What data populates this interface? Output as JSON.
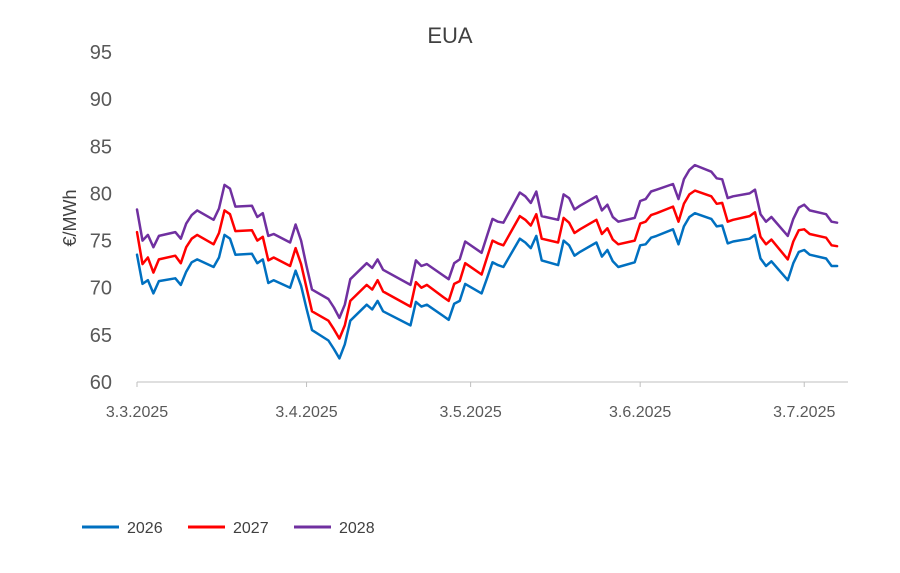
{
  "chart_data": {
    "type": "line",
    "title": "EUA",
    "ylabel": "€/MWh",
    "xlabel": "",
    "ylim": [
      60,
      95
    ],
    "yticks": [
      "60",
      "65",
      "70",
      "75",
      "80",
      "85",
      "90",
      "95"
    ],
    "xlim": [
      "2025-03-03",
      "2025-07-11"
    ],
    "xticks": [
      {
        "date": "2025-03-03",
        "label": "3.3.2025"
      },
      {
        "date": "2025-04-03",
        "label": "3.4.2025"
      },
      {
        "date": "2025-05-03",
        "label": "3.5.2025"
      },
      {
        "date": "2025-06-03",
        "label": "3.6.2025"
      },
      {
        "date": "2025-07-03",
        "label": "3.7.2025"
      }
    ],
    "grid": false,
    "legend_position": "bottom",
    "series": [
      {
        "name": "2026",
        "color": "#0070C0",
        "points": [
          [
            "2025-03-03",
            73.5
          ],
          [
            "2025-03-04",
            70.4
          ],
          [
            "2025-03-05",
            70.8
          ],
          [
            "2025-03-06",
            69.4
          ],
          [
            "2025-03-07",
            70.7
          ],
          [
            "2025-03-10",
            71.0
          ],
          [
            "2025-03-11",
            70.3
          ],
          [
            "2025-03-12",
            71.7
          ],
          [
            "2025-03-13",
            72.7
          ],
          [
            "2025-03-14",
            73.0
          ],
          [
            "2025-03-17",
            72.2
          ],
          [
            "2025-03-18",
            73.2
          ],
          [
            "2025-03-19",
            75.6
          ],
          [
            "2025-03-20",
            75.2
          ],
          [
            "2025-03-21",
            73.5
          ],
          [
            "2025-03-24",
            73.6
          ],
          [
            "2025-03-25",
            72.6
          ],
          [
            "2025-03-26",
            73.0
          ],
          [
            "2025-03-27",
            70.5
          ],
          [
            "2025-03-28",
            70.8
          ],
          [
            "2025-03-31",
            70.0
          ],
          [
            "2025-04-01",
            71.8
          ],
          [
            "2025-04-02",
            70.2
          ],
          [
            "2025-04-03",
            67.8
          ],
          [
            "2025-04-04",
            65.5
          ],
          [
            "2025-04-07",
            64.4
          ],
          [
            "2025-04-08",
            63.5
          ],
          [
            "2025-04-09",
            62.5
          ],
          [
            "2025-04-10",
            64.0
          ],
          [
            "2025-04-11",
            66.5
          ],
          [
            "2025-04-14",
            68.2
          ],
          [
            "2025-04-15",
            67.7
          ],
          [
            "2025-04-16",
            68.6
          ],
          [
            "2025-04-17",
            67.5
          ],
          [
            "2025-04-22",
            66.0
          ],
          [
            "2025-04-23",
            68.5
          ],
          [
            "2025-04-24",
            68.0
          ],
          [
            "2025-04-25",
            68.2
          ],
          [
            "2025-04-28",
            67.0
          ],
          [
            "2025-04-29",
            66.6
          ],
          [
            "2025-04-30",
            68.3
          ],
          [
            "2025-05-01",
            68.6
          ],
          [
            "2025-05-02",
            70.4
          ],
          [
            "2025-05-05",
            69.4
          ],
          [
            "2025-05-06",
            71.0
          ],
          [
            "2025-05-07",
            72.7
          ],
          [
            "2025-05-08",
            72.4
          ],
          [
            "2025-05-09",
            72.2
          ],
          [
            "2025-05-12",
            75.2
          ],
          [
            "2025-05-13",
            74.8
          ],
          [
            "2025-05-14",
            74.2
          ],
          [
            "2025-05-15",
            75.5
          ],
          [
            "2025-05-16",
            72.9
          ],
          [
            "2025-05-19",
            72.4
          ],
          [
            "2025-05-20",
            75.0
          ],
          [
            "2025-05-21",
            74.5
          ],
          [
            "2025-05-22",
            73.4
          ],
          [
            "2025-05-23",
            73.8
          ],
          [
            "2025-05-26",
            74.8
          ],
          [
            "2025-05-27",
            73.3
          ],
          [
            "2025-05-28",
            74.0
          ],
          [
            "2025-05-29",
            72.8
          ],
          [
            "2025-05-30",
            72.2
          ],
          [
            "2025-06-02",
            72.7
          ],
          [
            "2025-06-03",
            74.5
          ],
          [
            "2025-06-04",
            74.6
          ],
          [
            "2025-06-05",
            75.3
          ],
          [
            "2025-06-06",
            75.5
          ],
          [
            "2025-06-09",
            76.2
          ],
          [
            "2025-06-10",
            74.6
          ],
          [
            "2025-06-11",
            76.5
          ],
          [
            "2025-06-12",
            77.5
          ],
          [
            "2025-06-13",
            77.9
          ],
          [
            "2025-06-16",
            77.3
          ],
          [
            "2025-06-17",
            76.5
          ],
          [
            "2025-06-18",
            76.6
          ],
          [
            "2025-06-19",
            74.7
          ],
          [
            "2025-06-20",
            74.9
          ],
          [
            "2025-06-23",
            75.2
          ],
          [
            "2025-06-24",
            75.6
          ],
          [
            "2025-06-25",
            73.1
          ],
          [
            "2025-06-26",
            72.3
          ],
          [
            "2025-06-27",
            72.8
          ],
          [
            "2025-06-30",
            70.8
          ],
          [
            "2025-07-01",
            72.6
          ],
          [
            "2025-07-02",
            73.8
          ],
          [
            "2025-07-03",
            74.0
          ],
          [
            "2025-07-04",
            73.5
          ],
          [
            "2025-07-07",
            73.1
          ],
          [
            "2025-07-08",
            72.3
          ],
          [
            "2025-07-09",
            72.3
          ]
        ]
      },
      {
        "name": "2027",
        "color": "#FF0000",
        "points": [
          [
            "2025-03-03",
            75.9
          ],
          [
            "2025-03-04",
            72.5
          ],
          [
            "2025-03-05",
            73.2
          ],
          [
            "2025-03-06",
            71.6
          ],
          [
            "2025-03-07",
            73.0
          ],
          [
            "2025-03-10",
            73.4
          ],
          [
            "2025-03-11",
            72.6
          ],
          [
            "2025-03-12",
            74.3
          ],
          [
            "2025-03-13",
            75.2
          ],
          [
            "2025-03-14",
            75.6
          ],
          [
            "2025-03-17",
            74.6
          ],
          [
            "2025-03-18",
            75.8
          ],
          [
            "2025-03-19",
            78.2
          ],
          [
            "2025-03-20",
            77.8
          ],
          [
            "2025-03-21",
            76.0
          ],
          [
            "2025-03-24",
            76.1
          ],
          [
            "2025-03-25",
            75.0
          ],
          [
            "2025-03-26",
            75.4
          ],
          [
            "2025-03-27",
            72.9
          ],
          [
            "2025-03-28",
            73.2
          ],
          [
            "2025-03-31",
            72.3
          ],
          [
            "2025-04-01",
            74.2
          ],
          [
            "2025-04-02",
            72.5
          ],
          [
            "2025-04-03",
            70.0
          ],
          [
            "2025-04-04",
            67.5
          ],
          [
            "2025-04-07",
            66.5
          ],
          [
            "2025-04-08",
            65.6
          ],
          [
            "2025-04-09",
            64.6
          ],
          [
            "2025-04-10",
            66.0
          ],
          [
            "2025-04-11",
            68.6
          ],
          [
            "2025-04-14",
            70.3
          ],
          [
            "2025-04-15",
            69.8
          ],
          [
            "2025-04-16",
            70.8
          ],
          [
            "2025-04-17",
            69.6
          ],
          [
            "2025-04-22",
            68.0
          ],
          [
            "2025-04-23",
            70.6
          ],
          [
            "2025-04-24",
            70.0
          ],
          [
            "2025-04-25",
            70.3
          ],
          [
            "2025-04-28",
            69.0
          ],
          [
            "2025-04-29",
            68.6
          ],
          [
            "2025-04-30",
            70.4
          ],
          [
            "2025-05-01",
            70.7
          ],
          [
            "2025-05-02",
            72.6
          ],
          [
            "2025-05-05",
            71.4
          ],
          [
            "2025-05-06",
            73.2
          ],
          [
            "2025-05-07",
            75.0
          ],
          [
            "2025-05-08",
            74.7
          ],
          [
            "2025-05-09",
            74.5
          ],
          [
            "2025-05-12",
            77.6
          ],
          [
            "2025-05-13",
            77.2
          ],
          [
            "2025-05-14",
            76.6
          ],
          [
            "2025-05-15",
            77.8
          ],
          [
            "2025-05-16",
            75.2
          ],
          [
            "2025-05-19",
            74.8
          ],
          [
            "2025-05-20",
            77.4
          ],
          [
            "2025-05-21",
            76.9
          ],
          [
            "2025-05-22",
            75.8
          ],
          [
            "2025-05-23",
            76.2
          ],
          [
            "2025-05-26",
            77.2
          ],
          [
            "2025-05-27",
            75.7
          ],
          [
            "2025-05-28",
            76.3
          ],
          [
            "2025-05-29",
            75.1
          ],
          [
            "2025-05-30",
            74.6
          ],
          [
            "2025-06-02",
            75.0
          ],
          [
            "2025-06-03",
            76.8
          ],
          [
            "2025-06-04",
            77.0
          ],
          [
            "2025-06-05",
            77.7
          ],
          [
            "2025-06-06",
            77.9
          ],
          [
            "2025-06-09",
            78.6
          ],
          [
            "2025-06-10",
            77.0
          ],
          [
            "2025-06-11",
            78.9
          ],
          [
            "2025-06-12",
            79.9
          ],
          [
            "2025-06-13",
            80.3
          ],
          [
            "2025-06-16",
            79.7
          ],
          [
            "2025-06-17",
            78.9
          ],
          [
            "2025-06-18",
            79.0
          ],
          [
            "2025-06-19",
            77.0
          ],
          [
            "2025-06-20",
            77.2
          ],
          [
            "2025-06-23",
            77.6
          ],
          [
            "2025-06-24",
            78.0
          ],
          [
            "2025-06-25",
            75.4
          ],
          [
            "2025-06-26",
            74.6
          ],
          [
            "2025-06-27",
            75.1
          ],
          [
            "2025-06-30",
            73.0
          ],
          [
            "2025-07-01",
            74.9
          ],
          [
            "2025-07-02",
            76.1
          ],
          [
            "2025-07-03",
            76.2
          ],
          [
            "2025-07-04",
            75.7
          ],
          [
            "2025-07-07",
            75.3
          ],
          [
            "2025-07-08",
            74.5
          ],
          [
            "2025-07-09",
            74.4
          ]
        ]
      },
      {
        "name": "2028",
        "color": "#7030A0",
        "points": [
          [
            "2025-03-03",
            78.3
          ],
          [
            "2025-03-04",
            75.0
          ],
          [
            "2025-03-05",
            75.6
          ],
          [
            "2025-03-06",
            74.3
          ],
          [
            "2025-03-07",
            75.5
          ],
          [
            "2025-03-10",
            75.9
          ],
          [
            "2025-03-11",
            75.2
          ],
          [
            "2025-03-12",
            76.8
          ],
          [
            "2025-03-13",
            77.7
          ],
          [
            "2025-03-14",
            78.2
          ],
          [
            "2025-03-17",
            77.2
          ],
          [
            "2025-03-18",
            78.4
          ],
          [
            "2025-03-19",
            80.9
          ],
          [
            "2025-03-20",
            80.5
          ],
          [
            "2025-03-21",
            78.6
          ],
          [
            "2025-03-24",
            78.7
          ],
          [
            "2025-03-25",
            77.5
          ],
          [
            "2025-03-26",
            77.9
          ],
          [
            "2025-03-27",
            75.5
          ],
          [
            "2025-03-28",
            75.7
          ],
          [
            "2025-03-31",
            74.8
          ],
          [
            "2025-04-01",
            76.7
          ],
          [
            "2025-04-02",
            75.0
          ],
          [
            "2025-04-03",
            72.3
          ],
          [
            "2025-04-04",
            69.8
          ],
          [
            "2025-04-07",
            68.8
          ],
          [
            "2025-04-08",
            67.9
          ],
          [
            "2025-04-09",
            66.8
          ],
          [
            "2025-04-10",
            68.2
          ],
          [
            "2025-04-11",
            70.9
          ],
          [
            "2025-04-14",
            72.6
          ],
          [
            "2025-04-15",
            72.1
          ],
          [
            "2025-04-16",
            73.0
          ],
          [
            "2025-04-17",
            71.9
          ],
          [
            "2025-04-22",
            70.3
          ],
          [
            "2025-04-23",
            72.9
          ],
          [
            "2025-04-24",
            72.3
          ],
          [
            "2025-04-25",
            72.5
          ],
          [
            "2025-04-28",
            71.3
          ],
          [
            "2025-04-29",
            70.9
          ],
          [
            "2025-04-30",
            72.6
          ],
          [
            "2025-05-01",
            73.0
          ],
          [
            "2025-05-02",
            74.9
          ],
          [
            "2025-05-05",
            73.7
          ],
          [
            "2025-05-06",
            75.5
          ],
          [
            "2025-05-07",
            77.3
          ],
          [
            "2025-05-08",
            77.0
          ],
          [
            "2025-05-09",
            76.9
          ],
          [
            "2025-05-12",
            80.1
          ],
          [
            "2025-05-13",
            79.7
          ],
          [
            "2025-05-14",
            79.0
          ],
          [
            "2025-05-15",
            80.2
          ],
          [
            "2025-05-16",
            77.6
          ],
          [
            "2025-05-19",
            77.2
          ],
          [
            "2025-05-20",
            79.9
          ],
          [
            "2025-05-21",
            79.5
          ],
          [
            "2025-05-22",
            78.3
          ],
          [
            "2025-05-23",
            78.7
          ],
          [
            "2025-05-26",
            79.7
          ],
          [
            "2025-05-27",
            78.2
          ],
          [
            "2025-05-28",
            78.8
          ],
          [
            "2025-05-29",
            77.5
          ],
          [
            "2025-05-30",
            77.0
          ],
          [
            "2025-06-02",
            77.4
          ],
          [
            "2025-06-03",
            79.2
          ],
          [
            "2025-06-04",
            79.4
          ],
          [
            "2025-06-05",
            80.2
          ],
          [
            "2025-06-06",
            80.4
          ],
          [
            "2025-06-09",
            81.0
          ],
          [
            "2025-06-10",
            79.4
          ],
          [
            "2025-06-11",
            81.5
          ],
          [
            "2025-06-12",
            82.5
          ],
          [
            "2025-06-13",
            83.0
          ],
          [
            "2025-06-16",
            82.3
          ],
          [
            "2025-06-17",
            81.6
          ],
          [
            "2025-06-18",
            81.5
          ],
          [
            "2025-06-19",
            79.5
          ],
          [
            "2025-06-20",
            79.7
          ],
          [
            "2025-06-23",
            80.0
          ],
          [
            "2025-06-24",
            80.4
          ],
          [
            "2025-06-25",
            77.8
          ],
          [
            "2025-06-26",
            77.0
          ],
          [
            "2025-06-27",
            77.5
          ],
          [
            "2025-06-30",
            75.5
          ],
          [
            "2025-07-01",
            77.3
          ],
          [
            "2025-07-02",
            78.5
          ],
          [
            "2025-07-03",
            78.8
          ],
          [
            "2025-07-04",
            78.2
          ],
          [
            "2025-07-07",
            77.8
          ],
          [
            "2025-07-08",
            77.0
          ],
          [
            "2025-07-09",
            76.9
          ]
        ]
      }
    ]
  }
}
